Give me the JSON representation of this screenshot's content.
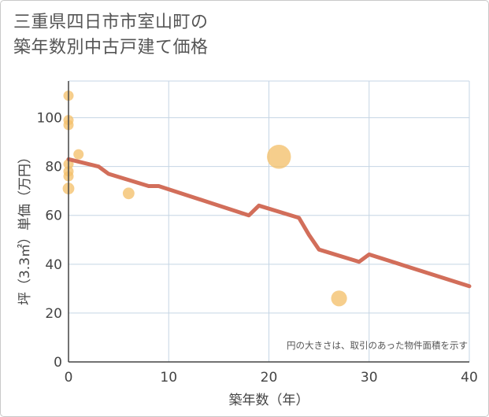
{
  "title_lines": [
    "三重県四日市市室山町の",
    "築年数別中古戸建て価格"
  ],
  "chart_data": {
    "type": "scatter+line",
    "title": "三重県四日市市室山町の築年数別中古戸建て価格",
    "xlabel": "築年数（年）",
    "ylabel": "坪（3.3㎡）単価（万円）",
    "xlim": [
      0,
      40
    ],
    "ylim": [
      0,
      115
    ],
    "xticks": [
      0,
      10,
      20,
      30,
      40
    ],
    "yticks": [
      0,
      20,
      40,
      60,
      80,
      100
    ],
    "grid": true,
    "note": "円の大きさは、取引のあった物件面積を示す",
    "colors": {
      "scatter": "#f4c06b",
      "line": "#d26e5a",
      "grid": "#c5d5e4",
      "axis": "#444444"
    },
    "scatter": [
      {
        "x": 0,
        "y": 109,
        "size": 1
      },
      {
        "x": 0,
        "y": 99,
        "size": 1
      },
      {
        "x": 0,
        "y": 97,
        "size": 1
      },
      {
        "x": 1,
        "y": 85,
        "size": 1
      },
      {
        "x": 0,
        "y": 81,
        "size": 1
      },
      {
        "x": 0,
        "y": 78,
        "size": 1
      },
      {
        "x": 0,
        "y": 76,
        "size": 1
      },
      {
        "x": 0,
        "y": 71,
        "size": 1.3
      },
      {
        "x": 6,
        "y": 69,
        "size": 1.3
      },
      {
        "x": 21,
        "y": 84,
        "size": 5.5
      },
      {
        "x": 27,
        "y": 26,
        "size": 2.4
      }
    ],
    "line": {
      "x": [
        0,
        2,
        3,
        4,
        8,
        9,
        18,
        19,
        23,
        24,
        25,
        29,
        30,
        40
      ],
      "y": [
        83,
        81,
        80,
        77,
        72,
        72,
        60,
        64,
        59,
        52,
        46,
        41,
        44,
        31
      ]
    }
  }
}
